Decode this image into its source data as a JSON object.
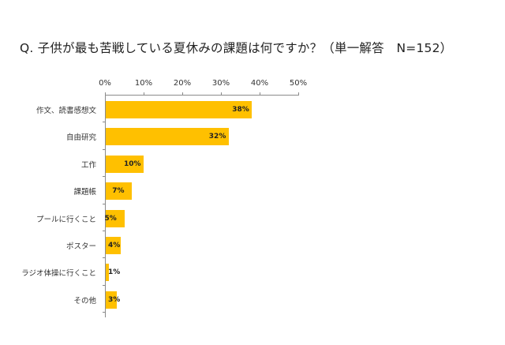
{
  "chart_data": {
    "type": "bar",
    "orientation": "horizontal",
    "title": "Q.  子供が最も苦戦している夏休みの課題は何ですか？（単一解答　N=152）",
    "categories": [
      "作文、読書感想文",
      "自由研究",
      "工作",
      "課題帳",
      "プールに行くこと",
      "ポスター",
      "ラジオ体操に行くこと",
      "その他"
    ],
    "values": [
      38,
      32,
      10,
      7,
      5,
      4,
      1,
      3
    ],
    "value_labels": [
      "38%",
      "32%",
      "10%",
      "7%",
      "5%",
      "4%",
      "1%",
      "3%"
    ],
    "xlabel": "",
    "ylabel": "",
    "xlim": [
      0,
      50
    ],
    "x_ticks": [
      "0%",
      "10%",
      "20%",
      "30%",
      "40%",
      "50%"
    ],
    "x_axis_position": "top",
    "grid": false,
    "legend": "none",
    "bar_color": "#ffc000",
    "sample_size": "N=152"
  }
}
